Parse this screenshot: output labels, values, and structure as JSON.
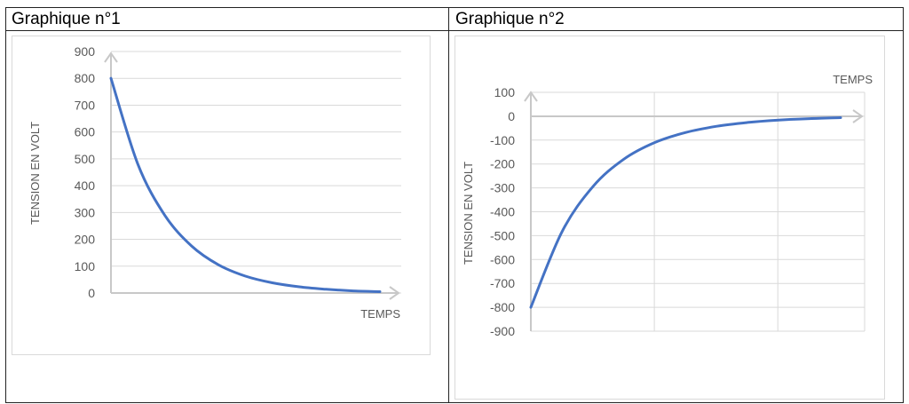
{
  "headers": {
    "left": "Graphique n°1",
    "right": "Graphique n°2"
  },
  "colors": {
    "curve": "#4472c4",
    "grid": "#d9d9d9",
    "axis_arrow": "#c8c8c8",
    "text": "#595959"
  },
  "chart_data": [
    {
      "type": "line",
      "title": "Graphique n°1",
      "xlabel": "TEMPS",
      "ylabel": "TENSION EN VOLT",
      "ylim": [
        0,
        900
      ],
      "yticks": [
        "900",
        "800",
        "700",
        "600",
        "500",
        "400",
        "300",
        "200",
        "100",
        "0"
      ],
      "grid": "horizontal",
      "series": [
        {
          "x": [
            0,
            1,
            2,
            3,
            4,
            5,
            6,
            7,
            8,
            9,
            10
          ],
          "y": [
            800,
            480,
            290,
            175,
            105,
            63,
            38,
            23,
            14,
            8,
            5
          ]
        }
      ]
    },
    {
      "type": "line",
      "title": "Graphique n°2",
      "xlabel": "TEMPS",
      "ylabel": "TENSION EN VOLT",
      "ylim": [
        -900,
        100
      ],
      "yticks": [
        "100",
        "0",
        "-100",
        "-200",
        "-300",
        "-400",
        "-500",
        "-600",
        "-700",
        "-800",
        "-900"
      ],
      "grid": "both",
      "series": [
        {
          "x": [
            0,
            1,
            2,
            3,
            4,
            5,
            6,
            7,
            8,
            9,
            10
          ],
          "y": [
            -800,
            -485,
            -295,
            -180,
            -110,
            -68,
            -42,
            -26,
            -16,
            -10,
            -6
          ]
        }
      ]
    }
  ]
}
